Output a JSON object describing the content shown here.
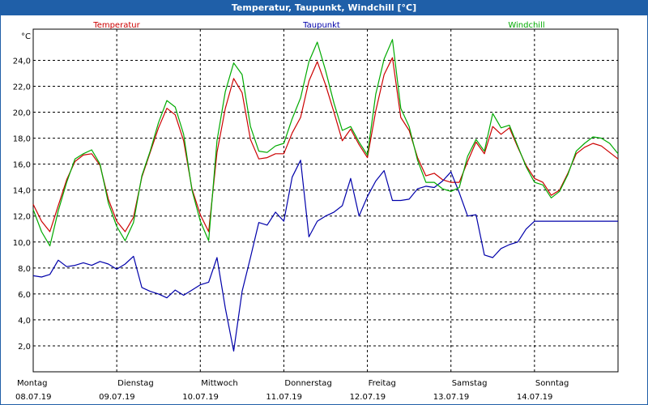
{
  "window": {
    "title": "Temperatur, Taupunkt, Windchill [°C]"
  },
  "chart_data": {
    "type": "line",
    "title": "Temperatur, Taupunkt, Windchill [°C]",
    "ylabel": "°C",
    "ylim": [
      0,
      26.4
    ],
    "y_ticks": [
      "2,0",
      "4,0",
      "6,0",
      "8,0",
      "10,0",
      "12,0",
      "14,0",
      "16,0",
      "18,0",
      "20,0",
      "22,0",
      "24,0"
    ],
    "y_tick_values": [
      2,
      4,
      6,
      8,
      10,
      12,
      14,
      16,
      18,
      20,
      22,
      24
    ],
    "x_range_days": [
      0,
      7
    ],
    "x_day_labels": [
      "Montag",
      "Dienstag",
      "Mittwoch",
      "Donnerstag",
      "Freitag",
      "Samstag",
      "Sonntag"
    ],
    "x_date_labels": [
      "08.07.19",
      "09.07.19",
      "10.07.19",
      "11.07.19",
      "12.07.19",
      "13.07.19",
      "14.07.19"
    ],
    "grid": true,
    "legend_placement": "top",
    "series": [
      {
        "name": "Temperatur",
        "color": "#cc0000",
        "x": [
          0,
          0.1,
          0.2,
          0.3,
          0.4,
          0.5,
          0.6,
          0.7,
          0.8,
          0.9,
          1.0,
          1.1,
          1.2,
          1.3,
          1.4,
          1.5,
          1.6,
          1.7,
          1.8,
          1.9,
          2.0,
          2.1,
          2.2,
          2.3,
          2.4,
          2.5,
          2.6,
          2.7,
          2.8,
          2.9,
          3.0,
          3.1,
          3.2,
          3.3,
          3.4,
          3.5,
          3.6,
          3.7,
          3.8,
          3.9,
          4.0,
          4.1,
          4.2,
          4.3,
          4.4,
          4.5,
          4.6,
          4.7,
          4.8,
          4.9,
          5.0,
          5.1,
          5.2,
          5.3,
          5.4,
          5.5,
          5.6,
          5.7,
          5.8,
          5.9,
          6.0,
          6.1,
          6.2,
          6.3,
          6.4,
          6.5,
          6.6,
          6.7,
          6.8,
          6.9,
          7.0
        ],
        "values": [
          12.9,
          11.6,
          10.8,
          12.8,
          14.8,
          16.2,
          16.7,
          16.8,
          15.9,
          13.3,
          11.6,
          10.8,
          11.9,
          15.0,
          16.9,
          18.8,
          20.3,
          19.8,
          17.8,
          14.1,
          12.1,
          10.8,
          16.9,
          20.3,
          22.6,
          21.5,
          17.9,
          16.4,
          16.5,
          16.8,
          16.8,
          18.4,
          19.6,
          22.4,
          23.9,
          22.1,
          20.0,
          17.8,
          18.7,
          17.5,
          16.5,
          20.1,
          22.9,
          24.2,
          19.6,
          18.6,
          16.5,
          15.1,
          15.3,
          14.8,
          14.6,
          14.6,
          16.2,
          17.7,
          16.8,
          18.9,
          18.3,
          18.8,
          17.3,
          15.9,
          14.9,
          14.6,
          13.6,
          14.0,
          15.3,
          16.8,
          17.3,
          17.6,
          17.4,
          16.9,
          16.4
        ]
      },
      {
        "name": "Taupunkt",
        "color": "#0000aa",
        "x": [
          0,
          0.1,
          0.2,
          0.3,
          0.4,
          0.5,
          0.6,
          0.7,
          0.8,
          0.9,
          1.0,
          1.1,
          1.2,
          1.3,
          1.4,
          1.5,
          1.6,
          1.7,
          1.8,
          1.9,
          2.0,
          2.1,
          2.2,
          2.3,
          2.4,
          2.5,
          2.6,
          2.7,
          2.8,
          2.9,
          3.0,
          3.1,
          3.2,
          3.3,
          3.4,
          3.5,
          3.6,
          3.7,
          3.8,
          3.9,
          4.0,
          4.1,
          4.2,
          4.3,
          4.4,
          4.5,
          4.6,
          4.7,
          4.8,
          4.9,
          5.0,
          5.1,
          5.2,
          5.3,
          5.4,
          5.5,
          5.6,
          5.7,
          5.8,
          5.9,
          6.0,
          6.1,
          6.2,
          6.3,
          6.4,
          6.5,
          6.6,
          6.7,
          6.8,
          6.9,
          7.0
        ],
        "values": [
          7.4,
          7.3,
          7.5,
          8.6,
          8.1,
          8.2,
          8.4,
          8.2,
          8.5,
          8.3,
          7.9,
          8.3,
          8.9,
          6.5,
          6.2,
          6.0,
          5.7,
          6.3,
          5.9,
          6.3,
          6.7,
          6.9,
          8.8,
          4.9,
          1.6,
          6.2,
          8.8,
          11.5,
          11.3,
          12.3,
          11.6,
          15.0,
          16.3,
          10.4,
          11.6,
          12.0,
          12.3,
          12.8,
          14.9,
          12.0,
          13.5,
          14.7,
          15.5,
          13.2,
          13.2,
          13.3,
          14.1,
          14.3,
          14.2,
          14.7,
          15.4,
          13.8,
          12.0,
          12.1,
          9.0,
          8.8,
          9.5,
          9.8,
          10.0,
          11.0,
          11.6,
          11.6,
          11.6,
          11.6,
          11.6,
          11.6,
          11.6,
          11.6,
          11.6,
          11.6,
          11.6
        ]
      },
      {
        "name": "Windchill",
        "color": "#00aa00",
        "x": [
          0,
          0.1,
          0.2,
          0.3,
          0.4,
          0.5,
          0.6,
          0.7,
          0.8,
          0.9,
          1.0,
          1.1,
          1.2,
          1.3,
          1.4,
          1.5,
          1.6,
          1.7,
          1.8,
          1.9,
          2.0,
          2.1,
          2.2,
          2.3,
          2.4,
          2.5,
          2.6,
          2.7,
          2.8,
          2.9,
          3.0,
          3.1,
          3.2,
          3.3,
          3.4,
          3.5,
          3.6,
          3.7,
          3.8,
          3.9,
          4.0,
          4.1,
          4.2,
          4.3,
          4.4,
          4.5,
          4.6,
          4.7,
          4.8,
          4.9,
          5.0,
          5.1,
          5.2,
          5.3,
          5.4,
          5.5,
          5.6,
          5.7,
          5.8,
          5.9,
          6.0,
          6.1,
          6.2,
          6.3,
          6.4,
          6.5,
          6.6,
          6.7,
          6.8,
          6.9,
          7.0
        ],
        "values": [
          12.5,
          10.8,
          9.7,
          12.4,
          14.6,
          16.4,
          16.8,
          17.1,
          16.0,
          13.0,
          11.2,
          10.1,
          11.5,
          15.1,
          17.0,
          19.2,
          20.9,
          20.4,
          18.3,
          14.0,
          11.6,
          10.1,
          17.8,
          21.6,
          23.8,
          22.9,
          18.9,
          17.0,
          16.9,
          17.4,
          17.6,
          19.5,
          21.1,
          23.9,
          25.4,
          23.2,
          20.7,
          18.6,
          18.9,
          17.7,
          16.7,
          21.4,
          24.1,
          25.6,
          20.3,
          18.9,
          16.3,
          14.6,
          14.6,
          14.1,
          13.9,
          14.2,
          16.6,
          17.9,
          17.0,
          19.9,
          18.8,
          19.0,
          17.4,
          15.8,
          14.6,
          14.4,
          13.4,
          13.9,
          15.2,
          17.0,
          17.6,
          18.1,
          18.0,
          17.6,
          16.8
        ]
      }
    ]
  }
}
